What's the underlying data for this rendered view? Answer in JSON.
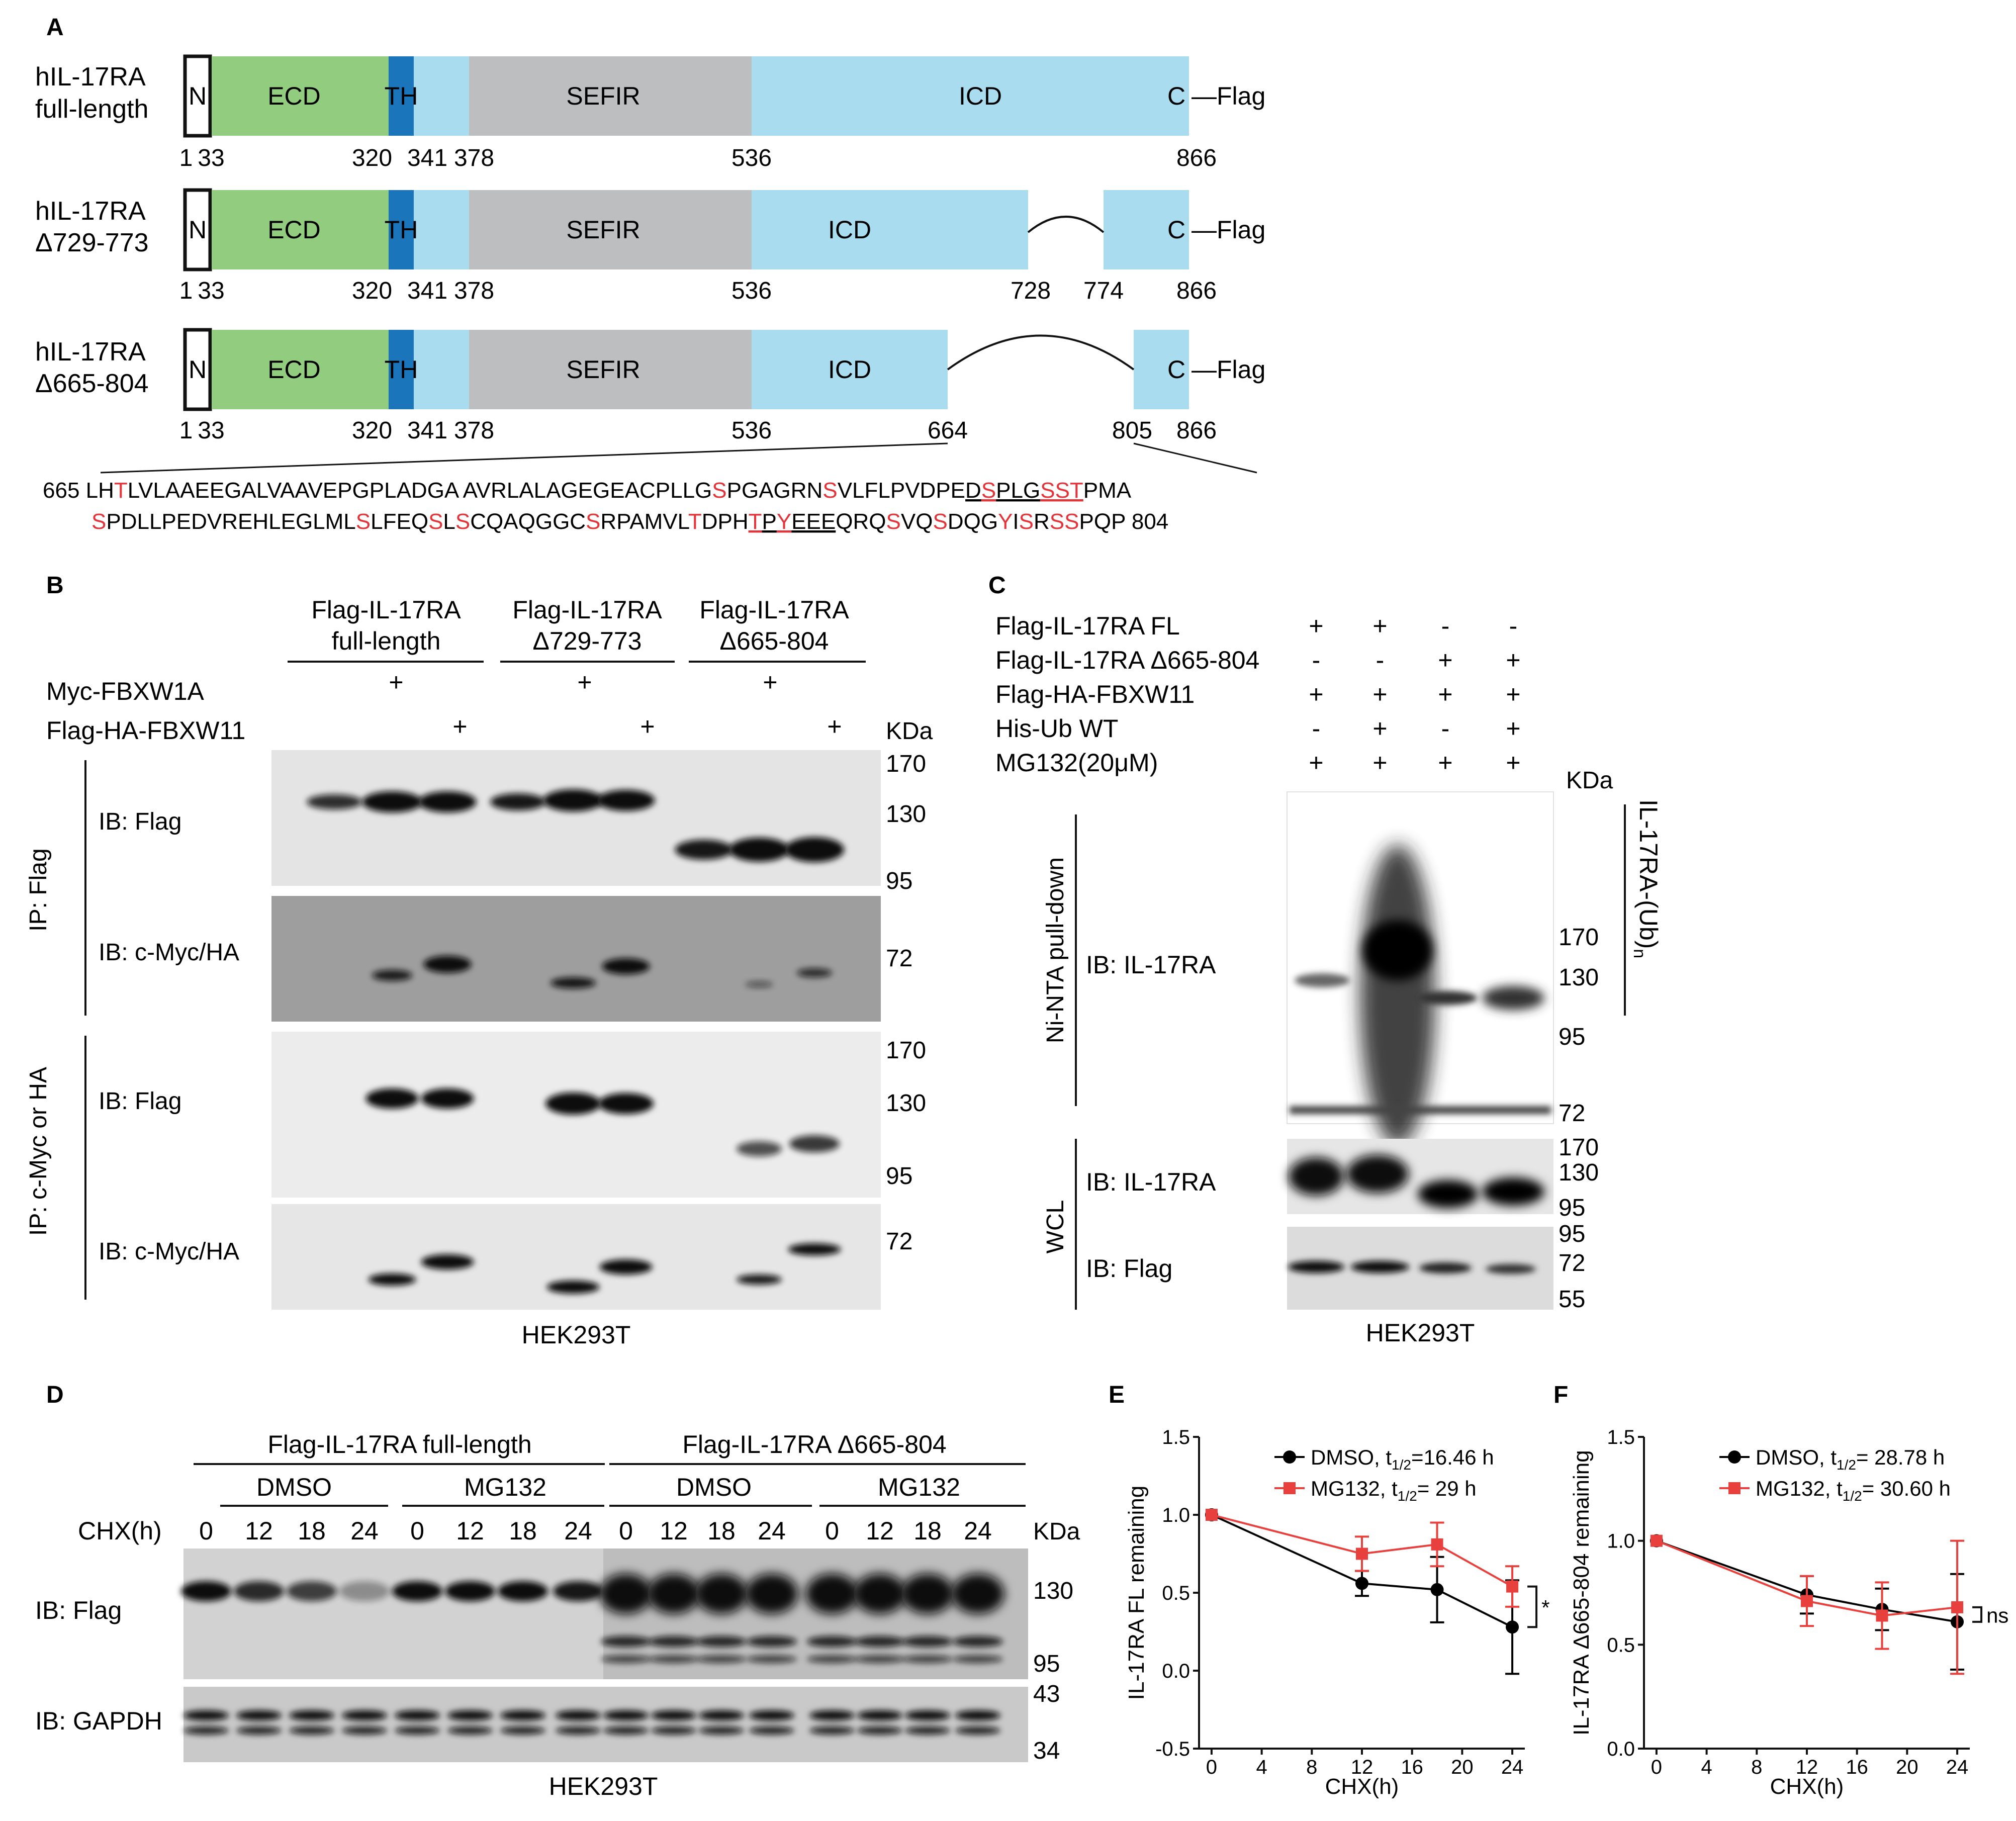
{
  "panel_letters": {
    "a": "A",
    "b": "B",
    "c": "C",
    "d": "D",
    "e": "E",
    "f": "F"
  },
  "panel_a": {
    "rows": [
      {
        "name_l1": "hIL-17RA",
        "name_l2": "full-length",
        "labels": {
          "n": "N",
          "ecd": "ECD",
          "th": "TH",
          "sefir": "SEFIR",
          "icd": "ICD",
          "c": "C"
        },
        "tag": "—Flag",
        "ticks": [
          "1",
          "33",
          "320",
          "341",
          "378",
          "536",
          "866"
        ]
      },
      {
        "name_l1": "hIL-17RA",
        "name_l2": "Δ729-773",
        "labels": {
          "n": "N",
          "ecd": "ECD",
          "th": "TH",
          "sefir": "SEFIR",
          "icd": "ICD",
          "c": "C"
        },
        "tag": "—Flag",
        "ticks": [
          "1",
          "33",
          "320",
          "341",
          "378",
          "536",
          "728",
          "774",
          "866"
        ]
      },
      {
        "name_l1": "hIL-17RA",
        "name_l2": "Δ665-804",
        "labels": {
          "n": "N",
          "ecd": "ECD",
          "th": "TH",
          "sefir": "SEFIR",
          "icd": "ICD",
          "c": "C"
        },
        "tag": "—Flag",
        "ticks": [
          "1",
          "33",
          "320",
          "341",
          "378",
          "536",
          "664",
          "805",
          "866"
        ]
      }
    ],
    "seq1_segments": [
      {
        "t": "665 LH",
        "c": "k"
      },
      {
        "t": "T",
        "c": "r"
      },
      {
        "t": "LVLAAEEGALVAAVEPGPLADGA AVRLALAGEGEACPLLG",
        "c": "k"
      },
      {
        "t": "S",
        "c": "r"
      },
      {
        "t": "PGAGRN",
        "c": "k"
      },
      {
        "t": "S",
        "c": "r"
      },
      {
        "t": "VLFLPVDPE",
        "c": "k"
      },
      {
        "t": "D",
        "c": "ku"
      },
      {
        "t": "S",
        "c": "ru"
      },
      {
        "t": "PLG",
        "c": "ku"
      },
      {
        "t": "SST",
        "c": "ru"
      },
      {
        "t": "PMA",
        "c": "k"
      }
    ],
    "seq2_segments": [
      {
        "t": "S",
        "c": "r"
      },
      {
        "t": "PDLLPEDVREHLEGLML",
        "c": "k"
      },
      {
        "t": "S",
        "c": "r"
      },
      {
        "t": "LFEQ",
        "c": "k"
      },
      {
        "t": "S",
        "c": "r"
      },
      {
        "t": "L",
        "c": "k"
      },
      {
        "t": "S",
        "c": "r"
      },
      {
        "t": "CQAQGGC",
        "c": "k"
      },
      {
        "t": "S",
        "c": "r"
      },
      {
        "t": "RPAMVL",
        "c": "k"
      },
      {
        "t": "T",
        "c": "r"
      },
      {
        "t": "DPH",
        "c": "k"
      },
      {
        "t": "T",
        "c": "ru"
      },
      {
        "t": "P",
        "c": "ku"
      },
      {
        "t": "Y",
        "c": "ru"
      },
      {
        "t": "EEE",
        "c": "ku"
      },
      {
        "t": "QRQ",
        "c": "k"
      },
      {
        "t": "S",
        "c": "r"
      },
      {
        "t": "VQ",
        "c": "k"
      },
      {
        "t": "S",
        "c": "r"
      },
      {
        "t": "DQG",
        "c": "k"
      },
      {
        "t": "Y",
        "c": "r"
      },
      {
        "t": "I",
        "c": "k"
      },
      {
        "t": "S",
        "c": "r"
      },
      {
        "t": "R",
        "c": "k"
      },
      {
        "t": "SS",
        "c": "r"
      },
      {
        "t": "PQP 804",
        "c": "k"
      }
    ]
  },
  "panel_b": {
    "groups": [
      {
        "l1": "Flag-IL-17RA",
        "l2": "full-length"
      },
      {
        "l1": "Flag-IL-17RA",
        "l2": "Δ729-773"
      },
      {
        "l1": "Flag-IL-17RA",
        "l2": "Δ665-804"
      }
    ],
    "row_labels": [
      "Myc-FBXW1A",
      "Flag-HA-FBXW11"
    ],
    "plus": "+",
    "kda": "KDa",
    "ip1": "IP: Flag",
    "ip2": "IP: c-Myc or HA",
    "ib_flag": "IB: Flag",
    "ib_mycha": "IB: c-Myc/HA",
    "mw_top": [
      "170",
      "130",
      "95"
    ],
    "mw_72": "72",
    "cell": "HEK293T"
  },
  "panel_c": {
    "row_labels": [
      "Flag-IL-17RA FL",
      "Flag-IL-17RA Δ665-804",
      "Flag-HA-FBXW11",
      "His-Ub WT",
      "MG132(20μM)"
    ],
    "signs": [
      [
        "+",
        "+",
        "-",
        "-"
      ],
      [
        "-",
        "-",
        "+",
        "+"
      ],
      [
        "+",
        "+",
        "+",
        "+"
      ],
      [
        "-",
        "+",
        "-",
        "+"
      ],
      [
        "+",
        "+",
        "+",
        "+"
      ]
    ],
    "kda": "KDa",
    "pulldown": "Ni-NTA pull-down",
    "wcl": "WCL",
    "ib1": "IB: IL-17RA",
    "ib2": "IB: IL-17RA",
    "ib3": "IB: Flag",
    "mw1": [
      "170",
      "130",
      "95",
      "72"
    ],
    "mw2": [
      "170",
      "130",
      "95"
    ],
    "mw3": [
      "95",
      "72",
      "55"
    ],
    "ub_label": "IL-17RA-(Ub)",
    "ub_sub": "n",
    "cell": "HEK293T"
  },
  "panel_d": {
    "group1": "Flag-IL-17RA full-length",
    "group2": "Flag-IL-17RA Δ665-804",
    "treatments": [
      "DMSO",
      "MG132",
      "DMSO",
      "MG132"
    ],
    "chx_label": "CHX(h)",
    "times": [
      "0",
      "12",
      "18",
      "24",
      "0",
      "12",
      "18",
      "24",
      "0",
      "12",
      "18",
      "24",
      "0",
      "12",
      "18",
      "24"
    ],
    "kda": "KDa",
    "ib_flag": "IB: Flag",
    "ib_gapdh": "IB: GAPDH",
    "mw_flag": [
      "130",
      "95"
    ],
    "mw_gapdh": [
      "43",
      "34"
    ],
    "cell": "HEK293T"
  },
  "chart_data": [
    {
      "panel": "E",
      "type": "line",
      "xlabel": "CHX(h)",
      "ylabel": "IL-17RA FL remaining",
      "x_ticks": [
        0,
        4,
        8,
        12,
        16,
        20,
        24
      ],
      "y_ticks": [
        -0.5,
        0.0,
        0.5,
        1.0,
        1.5
      ],
      "xlim": [
        -1,
        25
      ],
      "ylim": [
        -0.5,
        1.5
      ],
      "series": [
        {
          "name": "DMSO",
          "legend_text": "DMSO, t",
          "legend_sub": "1/2",
          "legend_rest": "=16.46 h",
          "color": "#000000",
          "x": [
            0,
            12,
            18,
            24
          ],
          "y": [
            1.0,
            0.56,
            0.52,
            0.28
          ],
          "err": [
            0.0,
            0.08,
            0.21,
            0.3
          ]
        },
        {
          "name": "MG132",
          "legend_text": "MG132, t",
          "legend_sub": "1/2",
          "legend_rest": "= 29 h",
          "color": "#e8403c",
          "x": [
            0,
            12,
            18,
            24
          ],
          "y": [
            1.0,
            0.75,
            0.81,
            0.54
          ],
          "err": [
            0.0,
            0.11,
            0.14,
            0.13
          ]
        }
      ],
      "significance": "*"
    },
    {
      "panel": "F",
      "type": "line",
      "xlabel": "CHX(h)",
      "ylabel": "IL-17RA Δ665-804 remaining",
      "x_ticks": [
        0,
        4,
        8,
        12,
        16,
        20,
        24
      ],
      "y_ticks": [
        0.0,
        0.5,
        1.0,
        1.5
      ],
      "xlim": [
        -1,
        25
      ],
      "ylim": [
        0,
        1.5
      ],
      "series": [
        {
          "name": "DMSO",
          "legend_text": "DMSO, t",
          "legend_sub": "1/2",
          "legend_rest": "= 28.78 h",
          "color": "#000000",
          "x": [
            0,
            12,
            18,
            24
          ],
          "y": [
            1.0,
            0.74,
            0.67,
            0.61
          ],
          "err": [
            0.0,
            0.09,
            0.1,
            0.23
          ]
        },
        {
          "name": "MG132",
          "legend_text": "MG132, t",
          "legend_sub": "1/2",
          "legend_rest": "= 30.60 h",
          "color": "#e8403c",
          "x": [
            0,
            12,
            18,
            24
          ],
          "y": [
            1.0,
            0.71,
            0.64,
            0.68
          ],
          "err": [
            0.0,
            0.12,
            0.16,
            0.32
          ]
        }
      ],
      "significance": "ns"
    }
  ]
}
